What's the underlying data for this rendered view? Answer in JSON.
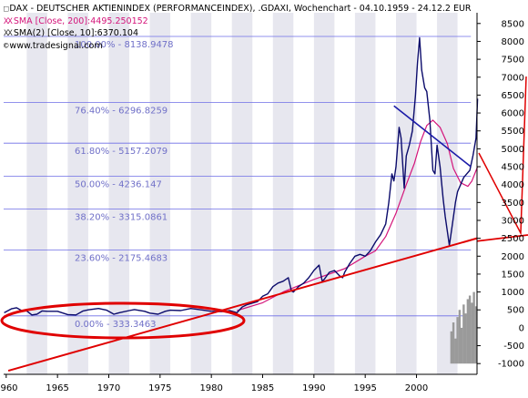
{
  "legend": {
    "line1": "DAX - DEUTSCHER AKTIENINDEX (PERFORMANCEINDEX), .GDAXI, Wochenchart - 04.10.1959 - 24.12.2 EUR",
    "line2": "SMA [Close, 200]:4495.250152",
    "line3": "SMA(2) [Close, 10]:6370.104",
    "line4": "www.tradesignal.com",
    "line1_mark": "□",
    "line2_mark": "XX",
    "line3_mark": "XX",
    "line4_mark": "©"
  },
  "colors": {
    "price": "#0b0b6b",
    "sma200": "#d4147a",
    "trendline": "#e00000",
    "fib": "#6e6ee6",
    "fib_text": "#7070c8",
    "band": "#e7e7ef",
    "axis_text": "#000000",
    "volume": "#9a9a9a"
  },
  "chart_data": {
    "type": "line",
    "title": "DAX - DEUTSCHER AKTIENINDEX (PERFORMANCEINDEX), .GDAXI, Wochenchart",
    "x_ticks": [
      "1960",
      "1965",
      "1970",
      "1975",
      "1980",
      "1985",
      "1990",
      "1995",
      "2000"
    ],
    "y_ticks": [
      "-1000",
      "-500",
      "0",
      "500",
      "1000",
      "1500",
      "2000",
      "2500",
      "3000",
      "3500",
      "4000",
      "4500",
      "5000",
      "5500",
      "6000",
      "6500",
      "7000",
      "7500",
      "8000",
      "8500"
    ],
    "xlim": [
      1959.75,
      2005.9
    ],
    "ylim": [
      -1300,
      8800
    ],
    "fibonacci_levels": [
      {
        "label": "100.00% - 8138.9478",
        "value": 8138.9478
      },
      {
        "label": "76.40% - 6296.8259",
        "value": 6296.8259
      },
      {
        "label": "61.80% - 5157.2079",
        "value": 5157.2079
      },
      {
        "label": "50.00% - 4236.147",
        "value": 4236.147
      },
      {
        "label": "38.20% - 3315.0861",
        "value": 3315.0861
      },
      {
        "label": "23.60% - 2175.4683",
        "value": 2175.4683
      },
      {
        "label": "0.00% - 333.3463",
        "value": 333.3463
      }
    ],
    "series": [
      {
        "key": "price",
        "x": [
          1959.8,
          1960.5,
          1961.0,
          1961.5,
          1962.0,
          1962.5,
          1963.0,
          1963.5,
          1964.0,
          1965.0,
          1966.0,
          1966.8,
          1967.5,
          1968.0,
          1969.0,
          1969.8,
          1970.5,
          1971.0,
          1972.0,
          1972.5,
          1973.5,
          1974.0,
          1974.8,
          1975.5,
          1976.0,
          1977.0,
          1978.0,
          1979.0,
          1980.0,
          1981.0,
          1981.8,
          1982.5,
          1983.0,
          1983.5,
          1984.0,
          1984.5,
          1985.0,
          1985.5,
          1986.0,
          1986.5,
          1987.0,
          1987.5,
          1987.8,
          1988.0,
          1988.5,
          1989.0,
          1989.5,
          1990.0,
          1990.5,
          1990.8,
          1991.0,
          1991.5,
          1992.0,
          1992.5,
          1992.8,
          1993.0,
          1993.5,
          1994.0,
          1994.5,
          1995.0,
          1995.5,
          1996.0,
          1996.5,
          1997.0,
          1997.3,
          1997.6,
          1997.8,
          1998.0,
          1998.3,
          1998.5,
          1998.8,
          1999.0,
          1999.3,
          1999.6,
          1999.9,
          2000.1,
          2000.3,
          2000.5,
          2000.8,
          2001.0,
          2001.3,
          2001.6,
          2001.8,
          2002.0,
          2002.3,
          2002.6,
          2002.8,
          2003.1,
          2003.2,
          2003.5,
          2003.8,
          2004.0,
          2004.3,
          2004.6,
          2004.9,
          2005.2,
          2005.5,
          2005.8,
          2005.95
        ],
        "values": [
          420,
          530,
          560,
          480,
          470,
          360,
          380,
          470,
          460,
          460,
          370,
          360,
          470,
          500,
          540,
          490,
          380,
          420,
          480,
          510,
          460,
          410,
          380,
          460,
          490,
          480,
          540,
          500,
          460,
          450,
          480,
          420,
          580,
          650,
          690,
          730,
          880,
          950,
          1150,
          1250,
          1300,
          1400,
          1030,
          1000,
          1150,
          1250,
          1400,
          1600,
          1750,
          1300,
          1350,
          1550,
          1600,
          1450,
          1400,
          1550,
          1800,
          2000,
          2050,
          2000,
          2150,
          2400,
          2600,
          2900,
          3500,
          4300,
          4100,
          4500,
          5600,
          5300,
          3900,
          4800,
          5100,
          5500,
          6500,
          7400,
          8100,
          7200,
          6700,
          6600,
          5800,
          4400,
          4300,
          5100,
          4500,
          3600,
          3100,
          2500,
          2300,
          2900,
          3500,
          3800,
          4000,
          4200,
          4300,
          4400,
          4800,
          5300,
          6400
        ]
      },
      {
        "key": "sma200",
        "x": [
          1982.5,
          1985.0,
          1987.0,
          1990.0,
          1993.0,
          1995.0,
          1996.0,
          1997.0,
          1998.0,
          1999.0,
          1999.8,
          2000.4,
          2001.0,
          2001.6,
          2002.3,
          2003.0,
          2003.6,
          2004.3,
          2005.0,
          2005.4,
          2005.95
        ],
        "values": [
          480,
          700,
          1000,
          1350,
          1650,
          2000,
          2150,
          2550,
          3200,
          4000,
          4600,
          5200,
          5650,
          5800,
          5600,
          5150,
          4450,
          4050,
          3950,
          4100,
          4500
        ]
      }
    ],
    "trendline_support": {
      "x": [
        1960.2,
        2005.9
      ],
      "values": [
        -1200,
        2500
      ]
    },
    "trendline_falling": {
      "x": [
        1997.8,
        2005.3
      ],
      "values": [
        6200,
        4500
      ]
    },
    "band_years": [
      1962,
      1966,
      1970,
      1974,
      1978,
      1982,
      1986,
      1990,
      1994,
      1998,
      2002
    ],
    "volume": {
      "x": [
        2003.4,
        2003.6,
        2003.8,
        2004.0,
        2004.2,
        2004.4,
        2004.6,
        2004.8,
        2005.0,
        2005.2,
        2005.4,
        2005.6,
        2005.8
      ],
      "values": [
        -100,
        150,
        -300,
        300,
        500,
        0,
        650,
        400,
        800,
        900,
        700,
        1000,
        600
      ]
    }
  }
}
